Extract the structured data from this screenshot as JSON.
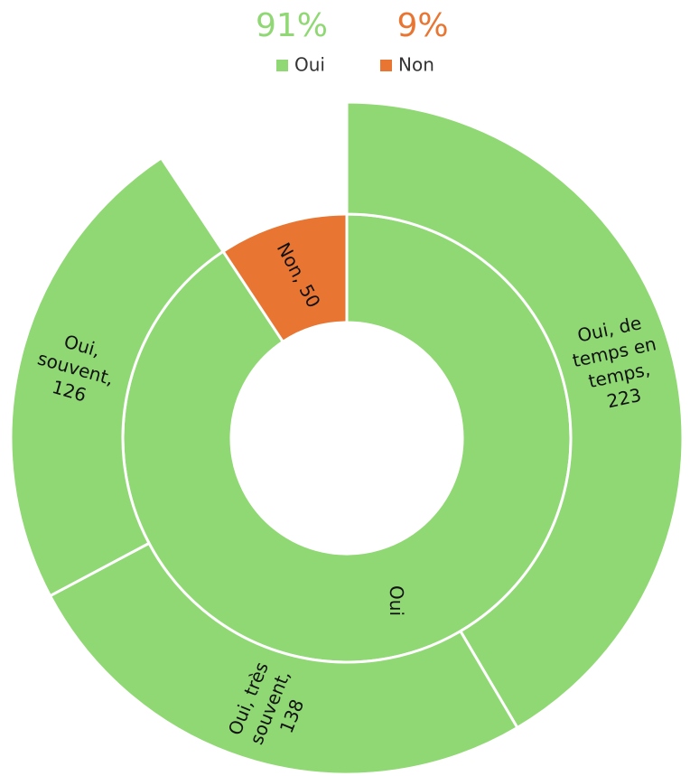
{
  "chart_data": {
    "type": "sunburst",
    "shares": [
      91,
      9
    ],
    "share_labels": [
      "91%",
      "9%"
    ],
    "inner": {
      "categories": [
        "Oui",
        "Non"
      ],
      "values": [
        487,
        50
      ],
      "colors": [
        "#8fd873",
        "#e87632"
      ],
      "data_labels": [
        "Oui",
        "Non, 50"
      ]
    },
    "outer": {
      "categories": [
        "Oui, de temps en temps",
        "Oui, très souvent",
        "Oui, souvent"
      ],
      "values": [
        223,
        138,
        126
      ],
      "color": "#8fd873",
      "data_labels": [
        "Oui, de temps en temps, 223",
        "Oui, très souvent, 138",
        "Oui, souvent, 126"
      ]
    },
    "legend": "top"
  }
}
